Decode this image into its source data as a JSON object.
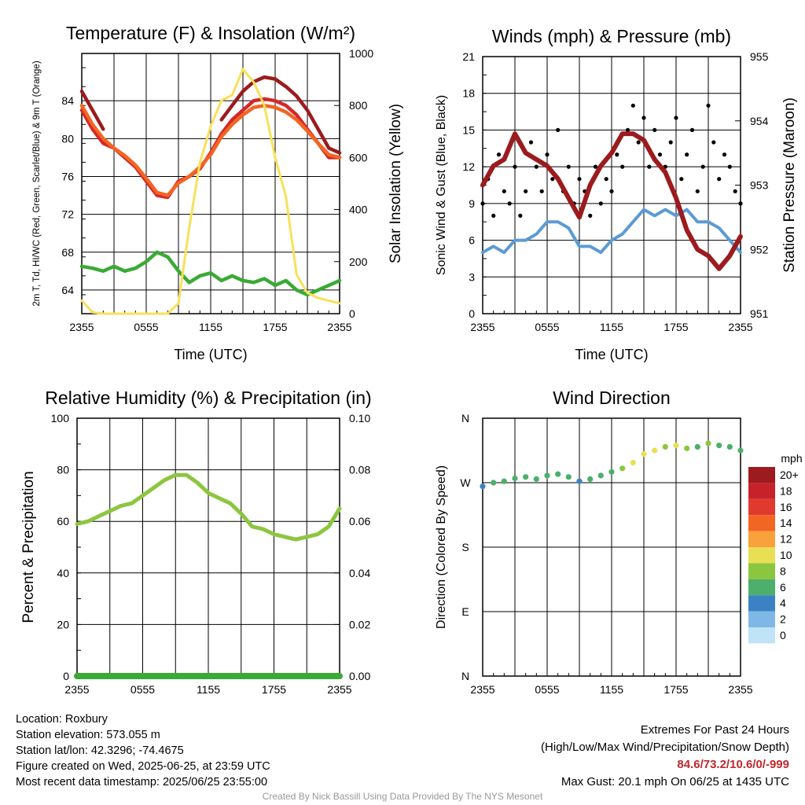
{
  "chart_data": [
    {
      "type": "line",
      "title": "Temperature (F) & Insolation (W/m²)",
      "xlabel": "Time (UTC)",
      "ylabel": "2m T, Td, HI/WC (Red, Green, Scarlet/Blue) & 9m T (Orange)",
      "ylabel_right": "Solar Insolation (Yellow)",
      "x_ticks": [
        "2355",
        "0555",
        "1155",
        "1755",
        "2355"
      ],
      "x_range_hours": [
        0,
        24
      ],
      "ylim": [
        61.5,
        89
      ],
      "y_ticks": [
        64,
        68,
        72,
        76,
        80,
        84
      ],
      "ylim_right": [
        0,
        1000
      ],
      "y_ticks_right": [
        0,
        200,
        400,
        600,
        800,
        1000
      ],
      "grid": true,
      "series": [
        {
          "color": "#d62728",
          "axis": "left",
          "x": [
            0,
            1,
            2,
            3,
            4,
            5,
            6,
            7,
            8,
            9,
            10,
            11,
            12,
            13,
            14,
            15,
            16,
            17,
            18,
            19,
            20,
            21,
            22,
            23,
            24
          ],
          "y": [
            83.0,
            81.0,
            79.5,
            79.0,
            78.0,
            77.0,
            75.5,
            74.0,
            73.8,
            75.5,
            76.0,
            76.8,
            78.5,
            80.5,
            82.0,
            83.0,
            84.0,
            84.2,
            84.0,
            83.5,
            82.5,
            81.0,
            79.5,
            78.0,
            78.0
          ]
        },
        {
          "color": "#f26522",
          "axis": "left",
          "x": [
            0,
            1,
            2,
            3,
            4,
            5,
            6,
            7,
            8,
            9,
            10,
            11,
            12,
            13,
            14,
            15,
            16,
            17,
            18,
            19,
            20,
            21,
            22,
            23,
            24
          ],
          "y": [
            83.5,
            81.5,
            80.0,
            79.0,
            78.2,
            77.2,
            75.8,
            74.3,
            74.0,
            75.3,
            76.0,
            77.0,
            78.3,
            80.2,
            81.5,
            82.5,
            83.3,
            83.5,
            83.3,
            82.8,
            82.0,
            80.8,
            79.5,
            78.3,
            78.0
          ]
        },
        {
          "color": "#9b1b1e",
          "axis": "left",
          "x": [
            0,
            1,
            2,
            3,
            4,
            5,
            6,
            7,
            8,
            9,
            10,
            11,
            12,
            13,
            14,
            15,
            16,
            17,
            18,
            19,
            20,
            21,
            22,
            23,
            24
          ],
          "y": [
            85.0,
            83.0,
            81.0,
            null,
            null,
            null,
            null,
            null,
            null,
            null,
            null,
            null,
            null,
            82.0,
            83.5,
            85.0,
            86.0,
            86.5,
            86.3,
            85.5,
            84.5,
            83.0,
            81.0,
            79.0,
            78.5
          ]
        },
        {
          "color": "#3aaa35",
          "axis": "left",
          "x": [
            0,
            1,
            2,
            3,
            4,
            5,
            6,
            7,
            8,
            9,
            10,
            11,
            12,
            13,
            14,
            15,
            16,
            17,
            18,
            19,
            20,
            21,
            22,
            23,
            24
          ],
          "y": [
            66.5,
            66.3,
            66.0,
            66.5,
            66.0,
            66.3,
            67.0,
            68.0,
            67.5,
            66.0,
            64.8,
            65.5,
            65.8,
            65.0,
            65.5,
            65.0,
            64.8,
            65.2,
            64.5,
            65.0,
            64.0,
            63.5,
            64.0,
            64.5,
            65.0
          ]
        },
        {
          "color": "#f7e15a",
          "axis": "right",
          "x": [
            0,
            1,
            2,
            3,
            4,
            5,
            6,
            7,
            8,
            9,
            10,
            11,
            12,
            13,
            14,
            15,
            16,
            17,
            18,
            19,
            20,
            21,
            22,
            23,
            24
          ],
          "y": [
            50,
            5,
            0,
            0,
            0,
            0,
            0,
            0,
            0,
            40,
            330,
            580,
            720,
            820,
            840,
            940,
            890,
            800,
            600,
            450,
            150,
            80,
            60,
            50,
            40
          ]
        }
      ]
    },
    {
      "type": "scatter",
      "title": "Winds (mph) & Pressure (mb)",
      "xlabel": "Time (UTC)",
      "ylabel": "Sonic Wind & Gust (Blue, Black)",
      "ylabel_right": "Station Pressure (Maroon)",
      "x_ticks": [
        "2355",
        "0555",
        "1155",
        "1755",
        "2355"
      ],
      "x_range_hours": [
        0,
        24
      ],
      "ylim": [
        0,
        21
      ],
      "y_ticks": [
        0,
        3,
        6,
        9,
        12,
        15,
        18,
        21
      ],
      "ylim_right": [
        951,
        955
      ],
      "y_ticks_right": [
        951,
        952,
        953,
        954,
        955
      ],
      "grid": true,
      "series": [
        {
          "color": "#5b9bd5",
          "kind": "line",
          "axis": "left",
          "x": [
            0,
            1,
            2,
            3,
            4,
            5,
            6,
            7,
            8,
            9,
            10,
            11,
            12,
            13,
            14,
            15,
            16,
            17,
            18,
            19,
            20,
            21,
            22,
            23,
            24
          ],
          "y": [
            5.0,
            5.5,
            5.0,
            6.0,
            6.0,
            6.5,
            7.5,
            7.5,
            7.0,
            5.5,
            5.5,
            5.0,
            6.0,
            6.5,
            7.5,
            8.5,
            8.0,
            8.5,
            8.0,
            8.5,
            7.5,
            7.5,
            7.0,
            6.0,
            5.0
          ]
        },
        {
          "color": "#000000",
          "kind": "scatter",
          "axis": "left",
          "x": [
            0,
            0.5,
            1,
            1.5,
            2,
            2.5,
            3,
            3.5,
            4,
            4.5,
            5,
            5.5,
            6,
            6.5,
            7,
            7.5,
            8,
            8.5,
            9,
            9.5,
            10,
            10.5,
            11,
            11.5,
            12,
            12.5,
            13,
            13.5,
            14,
            14.5,
            15,
            15.5,
            16,
            16.5,
            17,
            17.5,
            18,
            18.5,
            19,
            19.5,
            20,
            20.5,
            21,
            21.5,
            22,
            22.5,
            23,
            23.5,
            24
          ],
          "y": [
            9,
            11,
            8,
            13,
            10,
            9,
            12,
            8,
            10,
            14,
            12,
            10,
            13,
            11,
            15,
            10,
            12,
            9,
            11,
            10,
            8,
            12,
            9,
            11,
            10,
            13,
            12,
            15,
            17,
            14,
            16,
            12,
            15,
            13,
            12,
            14,
            16,
            11,
            13,
            15,
            10,
            12,
            17,
            14,
            11,
            13,
            12,
            10,
            9
          ]
        },
        {
          "color": "#9b1b1e",
          "kind": "line",
          "axis": "right",
          "x": [
            0,
            1,
            2,
            3,
            4,
            5,
            6,
            7,
            8,
            9,
            10,
            11,
            12,
            13,
            14,
            15,
            16,
            17,
            18,
            19,
            20,
            21,
            22,
            23,
            24
          ],
          "y": [
            953.0,
            953.3,
            953.4,
            953.8,
            953.5,
            953.4,
            953.3,
            953.1,
            952.8,
            952.5,
            953.0,
            953.3,
            953.5,
            953.8,
            953.8,
            953.7,
            953.4,
            953.2,
            952.8,
            952.3,
            952.0,
            951.9,
            951.7,
            951.9,
            952.2
          ]
        }
      ]
    },
    {
      "type": "line",
      "title": "Relative Humidity (%) & Precipitation (in)",
      "ylabel": "Percent & Precipitation",
      "x_ticks": [
        "2355",
        "0555",
        "1155",
        "1755",
        "2355"
      ],
      "x_range_hours": [
        0,
        24
      ],
      "ylim": [
        0,
        100
      ],
      "y_ticks": [
        0,
        20,
        40,
        60,
        80,
        100
      ],
      "ylim_right": [
        0,
        0.1
      ],
      "y_ticks_right": [
        "0.00",
        "0.02",
        "0.04",
        "0.06",
        "0.08",
        "0.10"
      ],
      "grid": true,
      "series": [
        {
          "color": "#8cc63f",
          "axis": "left",
          "x": [
            0,
            1,
            2,
            3,
            4,
            5,
            6,
            7,
            8,
            9,
            10,
            11,
            12,
            13,
            14,
            15,
            16,
            17,
            18,
            19,
            20,
            21,
            22,
            23,
            24
          ],
          "y": [
            59,
            60,
            62,
            64,
            66,
            67,
            70,
            73,
            76,
            78,
            78,
            75,
            71,
            69,
            67,
            63,
            58,
            57,
            55,
            54,
            53,
            54,
            55,
            58,
            65
          ]
        },
        {
          "color": "#3aaa35",
          "axis": "right",
          "x": [
            0,
            24
          ],
          "y": [
            0,
            0
          ]
        }
      ]
    },
    {
      "type": "scatter",
      "title": "Wind Direction",
      "ylabel": "Direction (Colored By Speed)",
      "x_ticks": [
        "2355",
        "0555",
        "1155",
        "1755",
        "2355"
      ],
      "x_range_hours": [
        0,
        24
      ],
      "y_ticks": [
        "N",
        "E",
        "S",
        "W",
        "N"
      ],
      "ylim_degrees": [
        0,
        360
      ],
      "grid": true,
      "colorbar": {
        "title": "mph",
        "labels": [
          "20+",
          "18",
          "16",
          "14",
          "12",
          "10",
          "8",
          "6",
          "4",
          "2",
          "0"
        ],
        "colors": [
          "#9b1b1e",
          "#c7222a",
          "#e03a2e",
          "#f26522",
          "#f9a13a",
          "#e8df55",
          "#8cc63f",
          "#4caf6a",
          "#3b82c4",
          "#7fb8e6",
          "#bfe3f7"
        ]
      },
      "x": [
        0,
        1,
        2,
        3,
        4,
        5,
        6,
        7,
        8,
        9,
        10,
        11,
        12,
        13,
        14,
        15,
        16,
        17,
        18,
        19,
        20,
        21,
        22,
        23,
        24
      ],
      "y": [
        265,
        270,
        272,
        276,
        278,
        275,
        280,
        282,
        278,
        272,
        275,
        280,
        285,
        290,
        298,
        310,
        315,
        320,
        322,
        318,
        320,
        325,
        322,
        320,
        315
      ],
      "speed": [
        4,
        5,
        6,
        6,
        5,
        6,
        6,
        6,
        5,
        4,
        5,
        6,
        6,
        8,
        9,
        10,
        9,
        8,
        10,
        8,
        6,
        7,
        6,
        6,
        5
      ]
    }
  ],
  "footer": {
    "location": "Location: Roxbury",
    "elevation": "Station elevation: 573.055 m",
    "latlon": "Station lat/lon: 42.3296; -74.4675",
    "created": "Figure created on Wed, 2025-06-25, at 23:59 UTC",
    "recent": "Most recent data timestamp: 2025/06/25 23:55:00",
    "extremes_title": "Extremes For Past 24 Hours",
    "extremes_subtitle": "(High/Low/Max Wind/Precipitation/Snow Depth)",
    "extremes_values": "84.6/73.2/10.6/0/-999",
    "max_gust": "Max Gust: 20.1 mph On 06/25 at 1435 UTC",
    "credit": "Created By Nick Bassill Using Data Provided By The NYS Mesonet"
  }
}
